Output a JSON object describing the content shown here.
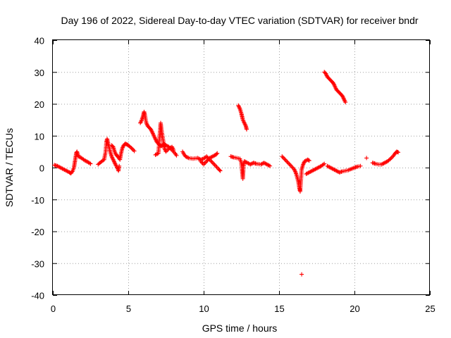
{
  "chart_data": {
    "type": "scatter",
    "title": "Day 196 of 2022, Sidereal Day-to-day VTEC variation (SDTVAR) for receiver bndr",
    "xlabel": "GPS time / hours",
    "ylabel": "SDTVAR / TECUs",
    "xlim": [
      0,
      25
    ],
    "ylim": [
      -40,
      40
    ],
    "xticks": [
      "0",
      "5",
      "10",
      "15",
      "20",
      "25"
    ],
    "yticks": [
      "-40",
      "-30",
      "-20",
      "-10",
      "0",
      "10",
      "20",
      "30",
      "40"
    ],
    "grid": true,
    "marker": "plus",
    "color": "#ff0000",
    "series": [
      {
        "name": "SDTVAR",
        "segments": [
          [
            [
              0.1,
              0.8
            ],
            [
              0.3,
              0.5
            ],
            [
              0.5,
              0.0
            ],
            [
              0.7,
              -0.5
            ],
            [
              0.9,
              -1.0
            ],
            [
              1.1,
              -1.5
            ],
            [
              1.2,
              -1.8
            ],
            [
              1.3,
              -1.2
            ],
            [
              1.4,
              0.0
            ],
            [
              1.45,
              1.5
            ],
            [
              1.5,
              3.0
            ],
            [
              1.55,
              4.5
            ],
            [
              1.6,
              5.0
            ],
            [
              1.7,
              3.5
            ],
            [
              1.9,
              3.0
            ],
            [
              2.1,
              2.3
            ],
            [
              2.3,
              1.8
            ],
            [
              2.5,
              1.2
            ]
          ],
          [
            [
              3.0,
              1.0
            ],
            [
              3.2,
              1.8
            ],
            [
              3.4,
              2.5
            ],
            [
              3.5,
              5.0
            ],
            [
              3.55,
              8.0
            ],
            [
              3.6,
              9.0
            ],
            [
              3.7,
              7.0
            ],
            [
              3.8,
              5.0
            ],
            [
              3.9,
              3.5
            ],
            [
              4.0,
              2.5
            ],
            [
              4.1,
              1.5
            ],
            [
              4.2,
              0.5
            ],
            [
              4.3,
              -0.3
            ],
            [
              4.35,
              -1.0
            ],
            [
              4.4,
              0.5
            ]
          ],
          [
            [
              3.9,
              7.0
            ],
            [
              4.0,
              6.5
            ],
            [
              4.1,
              5.0
            ],
            [
              4.2,
              4.0
            ],
            [
              4.3,
              3.5
            ],
            [
              4.45,
              2.5
            ],
            [
              4.5,
              4.0
            ],
            [
              4.6,
              6.0
            ],
            [
              4.7,
              7.0
            ],
            [
              4.8,
              7.5
            ],
            [
              4.9,
              7.3
            ],
            [
              5.0,
              7.0
            ],
            [
              5.2,
              6.2
            ],
            [
              5.4,
              5.2
            ]
          ],
          [
            [
              5.8,
              14.0
            ],
            [
              5.9,
              15.0
            ],
            [
              6.0,
              16.5
            ],
            [
              6.05,
              17.5
            ],
            [
              6.1,
              16.5
            ],
            [
              6.2,
              14.0
            ],
            [
              6.3,
              13.0
            ],
            [
              6.4,
              12.5
            ],
            [
              6.5,
              12.0
            ],
            [
              6.6,
              11.0
            ],
            [
              6.7,
              10.0
            ],
            [
              6.8,
              9.0
            ],
            [
              6.9,
              8.0
            ],
            [
              7.0,
              7.5
            ],
            [
              7.1,
              7.0
            ],
            [
              7.2,
              6.8
            ],
            [
              7.3,
              7.0
            ],
            [
              7.4,
              7.3
            ],
            [
              7.5,
              7.0
            ],
            [
              7.7,
              6.5
            ],
            [
              7.9,
              5.5
            ],
            [
              8.1,
              4.5
            ],
            [
              8.2,
              3.8
            ]
          ],
          [
            [
              6.8,
              4.0
            ],
            [
              7.0,
              4.5
            ],
            [
              7.05,
              8.0
            ],
            [
              7.1,
              11.0
            ],
            [
              7.15,
              14.0
            ],
            [
              7.2,
              12.0
            ],
            [
              7.3,
              9.0
            ],
            [
              7.4,
              6.0
            ],
            [
              7.5,
              5.0
            ],
            [
              7.7,
              6.0
            ],
            [
              7.9,
              6.5
            ],
            [
              8.0,
              5.5
            ]
          ],
          [
            [
              8.6,
              5.0
            ],
            [
              8.7,
              4.2
            ],
            [
              8.8,
              3.5
            ],
            [
              9.0,
              3.0
            ],
            [
              9.3,
              2.8
            ],
            [
              9.6,
              3.0
            ],
            [
              9.8,
              2.5
            ],
            [
              10.0,
              2.8
            ],
            [
              10.2,
              3.5
            ],
            [
              10.4,
              2.5
            ],
            [
              10.6,
              1.5
            ],
            [
              10.8,
              0.5
            ],
            [
              11.0,
              -0.5
            ],
            [
              11.1,
              -1.0
            ]
          ],
          [
            [
              9.8,
              2.0
            ],
            [
              10.0,
              1.0
            ],
            [
              10.2,
              2.0
            ],
            [
              10.4,
              3.0
            ],
            [
              10.6,
              3.5
            ],
            [
              10.8,
              4.0
            ],
            [
              10.9,
              4.5
            ]
          ],
          [
            [
              11.8,
              3.5
            ],
            [
              12.0,
              3.2
            ],
            [
              12.2,
              3.0
            ],
            [
              12.4,
              2.8
            ],
            [
              12.5,
              1.5
            ],
            [
              12.55,
              -1.0
            ],
            [
              12.6,
              -3.5
            ],
            [
              12.65,
              0.5
            ],
            [
              12.7,
              2.0
            ],
            [
              12.9,
              1.5
            ],
            [
              13.1,
              1.0
            ],
            [
              13.3,
              1.5
            ],
            [
              13.5,
              1.2
            ],
            [
              13.8,
              1.0
            ],
            [
              14.0,
              1.5
            ],
            [
              14.2,
              1.0
            ],
            [
              14.4,
              0.5
            ]
          ],
          [
            [
              12.3,
              19.5
            ],
            [
              12.4,
              18.5
            ],
            [
              12.5,
              17.0
            ],
            [
              12.55,
              16.0
            ],
            [
              12.6,
              15.0
            ],
            [
              12.7,
              14.0
            ],
            [
              12.8,
              13.0
            ],
            [
              12.85,
              12.0
            ]
          ],
          [
            [
              15.2,
              3.5
            ],
            [
              15.4,
              2.5
            ],
            [
              15.6,
              1.5
            ],
            [
              15.8,
              0.5
            ],
            [
              16.0,
              -0.5
            ],
            [
              16.1,
              -1.5
            ],
            [
              16.2,
              -3.0
            ],
            [
              16.3,
              -5.0
            ],
            [
              16.35,
              -6.5
            ],
            [
              16.4,
              -7.5
            ],
            [
              16.45,
              -4.0
            ],
            [
              16.5,
              -0.5
            ],
            [
              16.6,
              1.0
            ],
            [
              16.7,
              2.0
            ],
            [
              16.9,
              2.5
            ],
            [
              17.0,
              2.2
            ]
          ],
          [
            [
              16.5,
              -33.5
            ]
          ],
          [
            [
              16.8,
              -2.0
            ],
            [
              17.0,
              -1.5
            ],
            [
              17.2,
              -1.0
            ],
            [
              17.4,
              -0.5
            ],
            [
              17.6,
              0.0
            ],
            [
              17.8,
              0.5
            ],
            [
              18.0,
              1.2
            ]
          ],
          [
            [
              18.0,
              30.0
            ],
            [
              18.1,
              29.5
            ],
            [
              18.2,
              28.5
            ],
            [
              18.3,
              28.0
            ],
            [
              18.4,
              27.5
            ],
            [
              18.5,
              27.0
            ],
            [
              18.6,
              26.5
            ],
            [
              18.7,
              25.5
            ],
            [
              18.8,
              24.5
            ],
            [
              18.9,
              24.0
            ],
            [
              19.0,
              23.5
            ],
            [
              19.1,
              23.0
            ],
            [
              19.2,
              22.5
            ],
            [
              19.3,
              21.5
            ],
            [
              19.4,
              20.5
            ]
          ],
          [
            [
              18.2,
              0.5
            ],
            [
              18.4,
              0.0
            ],
            [
              18.6,
              -0.5
            ],
            [
              18.8,
              -1.0
            ],
            [
              19.0,
              -1.5
            ],
            [
              19.2,
              -1.2
            ],
            [
              19.4,
              -1.0
            ],
            [
              19.6,
              -0.8
            ],
            [
              20.0,
              0.0
            ],
            [
              20.2,
              0.3
            ],
            [
              20.4,
              0.5
            ]
          ],
          [
            [
              20.8,
              3.0
            ]
          ],
          [
            [
              21.2,
              1.5
            ],
            [
              21.4,
              1.2
            ],
            [
              21.6,
              1.0
            ],
            [
              21.8,
              1.0
            ],
            [
              22.0,
              1.5
            ],
            [
              22.2,
              2.0
            ],
            [
              22.4,
              2.8
            ],
            [
              22.6,
              3.8
            ],
            [
              22.7,
              4.5
            ],
            [
              22.8,
              5.0
            ],
            [
              22.9,
              4.8
            ]
          ]
        ]
      }
    ]
  }
}
